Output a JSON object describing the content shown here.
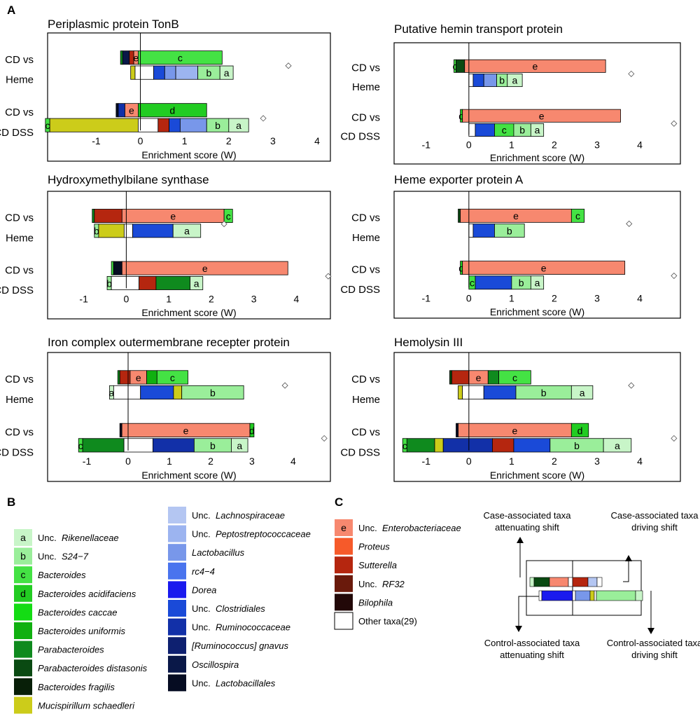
{
  "panel_labels": {
    "a": "A",
    "b": "B",
    "c": "C"
  },
  "row_labels": {
    "heme_line1": "CD vs",
    "heme_line2": "Heme",
    "dss_line1": "CD vs",
    "dss_line2": "CD DSS"
  },
  "colors": {
    "a": "#c8f5c8",
    "b": "#9aee9a",
    "c": "#44e244",
    "d": "#22cc22",
    "Bacteroides caccae": "#14dc14",
    "Bacteroides uniformis": "#10b010",
    "Parabacteroides": "#0f8a1e",
    "Parabacteroides distasonis": "#0a4a12",
    "Bacteroides fragilis": "#081f08",
    "Mucispirillum schaedleri": "#cccc1a",
    "Unc. Lachnospiraceae": "#b4c6f2",
    "Unc. Peptostreptococcaceae": "#9cb4f0",
    "Lactobacillus": "#7897ea",
    "rc4-4": "#4a74ee",
    "Dorea": "#1a1aee",
    "Unc. Clostridiales": "#1a4ad8",
    "Unc. Ruminococcaceae": "#1230a8",
    "[Ruminococcus] gnavus": "#0e2070",
    "Oscillospira": "#0a1848",
    "Unc. Lactobacillales": "#060c22",
    "e": "#f7886f",
    "Proteus": "#f65a2a",
    "Sutterella": "#b5260f",
    "Unc. RF32": "#6a1a0c",
    "Bilophila": "#220808",
    "Other": "#ffffff"
  },
  "chart_data": [
    {
      "type": "bar",
      "title": "Periplasmic protein TonB",
      "xlabel": "Enrichment score (W)",
      "ticks": [
        "-1",
        "0",
        "1",
        "2",
        "3",
        "4"
      ],
      "xlim": [
        -2.1,
        4.3
      ],
      "rows": [
        {
          "label": "CD vs Heme",
          "top": [
            {
              "v": -0.4,
              "c": "Parabacteroides"
            },
            {
              "v": -0.25,
              "c": "Oscillospira"
            },
            {
              "v": -0.15,
              "c": "Sutterella"
            },
            {
              "v": -0.05,
              "c": "e",
              "t": "e"
            },
            {
              "v": 1.85,
              "c": "c",
              "t": "c"
            }
          ],
          "bot": [
            {
              "v": -0.12,
              "c": "Mucispirillum schaedleri"
            },
            {
              "v": 0.3,
              "c": "Other"
            },
            {
              "v": 0.55,
              "c": "Unc. Clostridiales"
            },
            {
              "v": 0.8,
              "c": "Lactobacillus"
            },
            {
              "v": 1.3,
              "c": "Unc. Peptostreptococcaceae"
            },
            {
              "v": 1.8,
              "c": "b",
              "t": "b"
            },
            {
              "v": 2.1,
              "c": "a",
              "t": "a"
            }
          ],
          "score": 3.35
        },
        {
          "label": "CD vs CD DSS",
          "top": [
            {
              "v": -0.5,
              "c": "Unc. Lactobacillales"
            },
            {
              "v": -0.35,
              "c": "Unc. Ruminococcaceae"
            },
            {
              "v": -0.05,
              "c": "e",
              "t": "e"
            },
            {
              "v": 1.5,
              "c": "d",
              "t": "d"
            }
          ],
          "bot": [
            {
              "v": -2.05,
              "c": "c",
              "t": "c"
            },
            {
              "v": -0.05,
              "c": "Mucispirillum schaedleri"
            },
            {
              "v": 0.4,
              "c": "Other"
            },
            {
              "v": 0.65,
              "c": "Sutterella"
            },
            {
              "v": 0.9,
              "c": "Unc. Clostridiales"
            },
            {
              "v": 1.5,
              "c": "Lactobacillus"
            },
            {
              "v": 2.0,
              "c": "b",
              "t": "b"
            },
            {
              "v": 2.45,
              "c": "a",
              "t": "a"
            }
          ],
          "score": 2.78
        }
      ]
    },
    {
      "type": "bar",
      "title": "Putative hemin transport protein",
      "xlabel": "Enrichment score (W)",
      "ticks": [
        "-1",
        "0",
        "1",
        "2",
        "3",
        "4"
      ],
      "xlim": [
        -1.75,
        4.95
      ],
      "rows": [
        {
          "label": "CD vs Heme",
          "top": [
            {
              "v": -0.3,
              "c": "c",
              "t": "c"
            },
            {
              "v": -0.1,
              "c": "Parabacteroides distasonis"
            },
            {
              "v": 3.2,
              "c": "e",
              "t": "e"
            }
          ],
          "bot": [
            {
              "v": 0.1,
              "c": "Other"
            },
            {
              "v": 0.35,
              "c": "Unc. Clostridiales"
            },
            {
              "v": 0.65,
              "c": "Lactobacillus"
            },
            {
              "v": 0.9,
              "c": "b",
              "t": "b"
            },
            {
              "v": 1.25,
              "c": "a",
              "t": "a"
            }
          ],
          "score": 3.8
        },
        {
          "label": "CD vs CD DSS",
          "top": [
            {
              "v": -0.15,
              "c": "d",
              "t": "d"
            },
            {
              "v": 3.55,
              "c": "e",
              "t": "e"
            }
          ],
          "bot": [
            {
              "v": 0.15,
              "c": "Other"
            },
            {
              "v": 0.6,
              "c": "Unc. Clostridiales"
            },
            {
              "v": 1.05,
              "c": "c",
              "t": "c"
            },
            {
              "v": 1.45,
              "c": "b",
              "t": "b"
            },
            {
              "v": 1.75,
              "c": "a",
              "t": "a"
            }
          ],
          "score": 4.8
        }
      ]
    },
    {
      "type": "bar",
      "title": "Hydroxymethylbilane synthase",
      "xlabel": "Enrichment score (W)",
      "ticks": [
        "-1",
        "0",
        "1",
        "2",
        "3",
        "4"
      ],
      "xlim": [
        -1.85,
        4.8
      ],
      "rows": [
        {
          "label": "CD vs Heme",
          "top": [
            {
              "v": -0.75,
              "c": "Parabacteroides"
            },
            {
              "v": -0.1,
              "c": "Sutterella"
            },
            {
              "v": 2.3,
              "c": "e",
              "t": "e"
            },
            {
              "v": 2.5,
              "c": "c",
              "t": "c"
            }
          ],
          "bot": [
            {
              "v": -0.65,
              "c": "b",
              "t": "b"
            },
            {
              "v": -0.05,
              "c": "Mucispirillum schaedleri"
            },
            {
              "v": 0.15,
              "c": "Other"
            },
            {
              "v": 1.1,
              "c": "Unc. Clostridiales"
            },
            {
              "v": 1.75,
              "c": "a",
              "t": "a"
            }
          ],
          "score": 2.3
        },
        {
          "label": "CD vs CD DSS",
          "top": [
            {
              "v": -0.3,
              "c": "c"
            },
            {
              "v": -0.1,
              "c": "Unc. Lactobacillales"
            },
            {
              "v": 3.8,
              "c": "e",
              "t": "e"
            }
          ],
          "bot": [
            {
              "v": -0.35,
              "c": "b",
              "t": "b"
            },
            {
              "v": 0.3,
              "c": "Other"
            },
            {
              "v": 0.7,
              "c": "Sutterella"
            },
            {
              "v": 1.5,
              "c": "Parabacteroides"
            },
            {
              "v": 1.8,
              "c": "a",
              "t": "a"
            }
          ],
          "score": 4.75
        }
      ]
    },
    {
      "type": "bar",
      "title": "Heme exporter protein A",
      "xlabel": "Enrichment score (W)",
      "ticks": [
        "-1",
        "0",
        "1",
        "2",
        "3",
        "4"
      ],
      "xlim": [
        -1.75,
        4.95
      ],
      "rows": [
        {
          "label": "CD vs Heme",
          "top": [
            {
              "v": -0.2,
              "c": "Parabacteroides distasonis"
            },
            {
              "v": 2.4,
              "c": "e",
              "t": "e"
            },
            {
              "v": 2.7,
              "c": "c",
              "t": "c"
            }
          ],
          "bot": [
            {
              "v": 0.1,
              "c": "Other"
            },
            {
              "v": 0.6,
              "c": "Unc. Clostridiales"
            },
            {
              "v": 1.3,
              "c": "b",
              "t": "b"
            }
          ],
          "score": 3.75
        },
        {
          "label": "CD vs CD DSS",
          "top": [
            {
              "v": -0.15,
              "c": "d",
              "t": "d"
            },
            {
              "v": 3.65,
              "c": "e",
              "t": "e"
            }
          ],
          "bot": [
            {
              "v": 0.15,
              "c": "c",
              "t": "c"
            },
            {
              "v": 1.0,
              "c": "Unc. Clostridiales"
            },
            {
              "v": 1.45,
              "c": "b",
              "t": "b"
            },
            {
              "v": 1.75,
              "c": "a",
              "t": "a"
            }
          ],
          "score": 4.8
        }
      ]
    },
    {
      "type": "bar",
      "title": "Iron complex outermembrane recepter protein",
      "xlabel": "Enrichment score (W)",
      "ticks": [
        "-1",
        "0",
        "1",
        "2",
        "3",
        "4"
      ],
      "xlim": [
        -1.95,
        4.9
      ],
      "rows": [
        {
          "label": "CD vs Heme",
          "top": [
            {
              "v": -0.2,
              "c": "Parabacteroides"
            },
            {
              "v": 0.05,
              "c": "Sutterella"
            },
            {
              "v": 0.45,
              "c": "e",
              "t": "e"
            },
            {
              "v": 0.7,
              "c": "Bacteroides uniformis"
            },
            {
              "v": 1.45,
              "c": "c",
              "t": "c"
            }
          ],
          "bot": [
            {
              "v": -0.35,
              "c": "a",
              "t": "a"
            },
            {
              "v": 0.3,
              "c": "Other"
            },
            {
              "v": 1.1,
              "c": "Unc. Clostridiales"
            },
            {
              "v": 1.3,
              "c": "Mucispirillum schaedleri"
            },
            {
              "v": 2.8,
              "c": "b",
              "t": "b"
            }
          ],
          "score": 3.8
        },
        {
          "label": "CD vs CD DSS",
          "top": [
            {
              "v": -0.15,
              "c": "Unc. Lactobacillales"
            },
            {
              "v": 2.95,
              "c": "e",
              "t": "e"
            },
            {
              "v": 3.05,
              "c": "d",
              "t": "d"
            }
          ],
          "bot": [
            {
              "v": -1.1,
              "c": "c",
              "t": "c"
            },
            {
              "v": -0.1,
              "c": "Parabacteroides"
            },
            {
              "v": 0.6,
              "c": "Other"
            },
            {
              "v": 1.6,
              "c": "Unc. Ruminococcaceae"
            },
            {
              "v": 2.5,
              "c": "b",
              "t": "b"
            },
            {
              "v": 2.9,
              "c": "a",
              "t": "a"
            }
          ],
          "score": 4.75
        }
      ]
    },
    {
      "type": "bar",
      "title": "Hemolysin III",
      "xlabel": "Enrichment score (W)",
      "ticks": [
        "-1",
        "0",
        "1",
        "2",
        "3",
        "4"
      ],
      "xlim": [
        -1.75,
        4.95
      ],
      "rows": [
        {
          "label": "CD vs Heme",
          "top": [
            {
              "v": -0.4,
              "c": "Parabacteroides distasonis"
            },
            {
              "v": 0.0,
              "c": "Sutterella"
            },
            {
              "v": 0.45,
              "c": "e",
              "t": "e"
            },
            {
              "v": 0.7,
              "c": "Parabacteroides"
            },
            {
              "v": 1.45,
              "c": "c",
              "t": "c"
            }
          ],
          "bot": [
            {
              "v": -0.15,
              "c": "Mucispirillum schaedleri"
            },
            {
              "v": 0.35,
              "c": "Other"
            },
            {
              "v": 1.1,
              "c": "Unc. Clostridiales"
            },
            {
              "v": 2.4,
              "c": "b",
              "t": "b"
            },
            {
              "v": 2.9,
              "c": "a",
              "t": "a"
            }
          ],
          "score": 3.8
        },
        {
          "label": "CD vs CD DSS",
          "top": [
            {
              "v": -0.25,
              "c": "Unc. Lactobacillales"
            },
            {
              "v": 2.4,
              "c": "e",
              "t": "e"
            },
            {
              "v": 2.8,
              "c": "d",
              "t": "d"
            }
          ],
          "bot": [
            {
              "v": -1.45,
              "c": "c",
              "t": "c"
            },
            {
              "v": -0.8,
              "c": "Parabacteroides"
            },
            {
              "v": -0.6,
              "c": "Mucispirillum schaedleri"
            },
            {
              "v": 0.55,
              "c": "Unc. Ruminococcaceae"
            },
            {
              "v": 1.05,
              "c": "Sutterella"
            },
            {
              "v": 1.9,
              "c": "Unc. Clostridiales"
            },
            {
              "v": 3.15,
              "c": "b",
              "t": "b"
            },
            {
              "v": 3.8,
              "c": "a",
              "t": "a"
            }
          ],
          "score": 4.8
        }
      ]
    }
  ],
  "legend_b": [
    {
      "key": "a",
      "prefix": "Unc.",
      "name": "Rikenellaceae"
    },
    {
      "key": "b",
      "prefix": "Unc.",
      "name": "S24−7"
    },
    {
      "key": "c",
      "prefix": "",
      "name": "Bacteroides"
    },
    {
      "key": "d",
      "prefix": "",
      "name": "Bacteroides acidifaciens"
    },
    {
      "key": "",
      "prefix": "",
      "name": "Bacteroides caccae",
      "color": "Bacteroides caccae"
    },
    {
      "key": "",
      "prefix": "",
      "name": "Bacteroides uniformis",
      "color": "Bacteroides uniformis"
    },
    {
      "key": "",
      "prefix": "",
      "name": "Parabacteroides",
      "color": "Parabacteroides"
    },
    {
      "key": "",
      "prefix": "",
      "name": "Parabacteroides distasonis",
      "color": "Parabacteroides distasonis"
    },
    {
      "key": "",
      "prefix": "",
      "name": "Bacteroides fragilis",
      "color": "Bacteroides fragilis"
    },
    {
      "key": "",
      "prefix": "",
      "name": "Mucispirillum schaedleri",
      "color": "Mucispirillum schaedleri"
    },
    {
      "key": "",
      "prefix": "Unc.",
      "name": "Lachnospiraceae",
      "color": "Unc. Lachnospiraceae"
    },
    {
      "key": "",
      "prefix": "Unc.",
      "name": "Peptostreptococcaceae",
      "color": "Unc. Peptostreptococcaceae"
    },
    {
      "key": "",
      "prefix": "",
      "name": "Lactobacillus",
      "color": "Lactobacillus"
    },
    {
      "key": "",
      "prefix": "",
      "name": "rc4−4",
      "color": "rc4-4"
    },
    {
      "key": "",
      "prefix": "",
      "name": "Dorea",
      "color": "Dorea"
    },
    {
      "key": "",
      "prefix": "Unc.",
      "name": "Clostridiales",
      "color": "Unc. Clostridiales"
    },
    {
      "key": "",
      "prefix": "Unc.",
      "name": "Ruminococcaceae",
      "color": "Unc. Ruminococcaceae"
    },
    {
      "key": "",
      "prefix": "",
      "name": "[Ruminococcus] gnavus",
      "color": "[Ruminococcus] gnavus"
    },
    {
      "key": "",
      "prefix": "",
      "name": "Oscillospira",
      "color": "Oscillospira"
    },
    {
      "key": "",
      "prefix": "Unc.",
      "name": "Lactobacillales",
      "color": "Unc. Lactobacillales"
    }
  ],
  "legend_c": [
    {
      "key": "e",
      "prefix": "Unc.",
      "name": "Enterobacteriaceae"
    },
    {
      "key": "",
      "prefix": "",
      "name": "Proteus",
      "color": "Proteus"
    },
    {
      "key": "",
      "prefix": "",
      "name": "Sutterella",
      "color": "Sutterella"
    },
    {
      "key": "",
      "prefix": "Unc.",
      "name": "RF32",
      "color": "Unc. RF32"
    },
    {
      "key": "",
      "prefix": "",
      "name": "Bilophila",
      "color": "Bilophila"
    },
    {
      "key": "",
      "prefix": "",
      "name": "Other taxa(29)",
      "color": "Other",
      "plain": true
    }
  ],
  "schematic": {
    "case_attenuating_1": "Case-associated taxa",
    "case_attenuating_2": "attenuating shift",
    "case_driving_1": "Case-associated taxa",
    "case_driving_2": "driving shift",
    "control_attenuating_1": "Control-associated taxa",
    "control_attenuating_2": "attenuating shift",
    "control_driving_1": "Control-associated taxa",
    "control_driving_2": "driving shift"
  }
}
